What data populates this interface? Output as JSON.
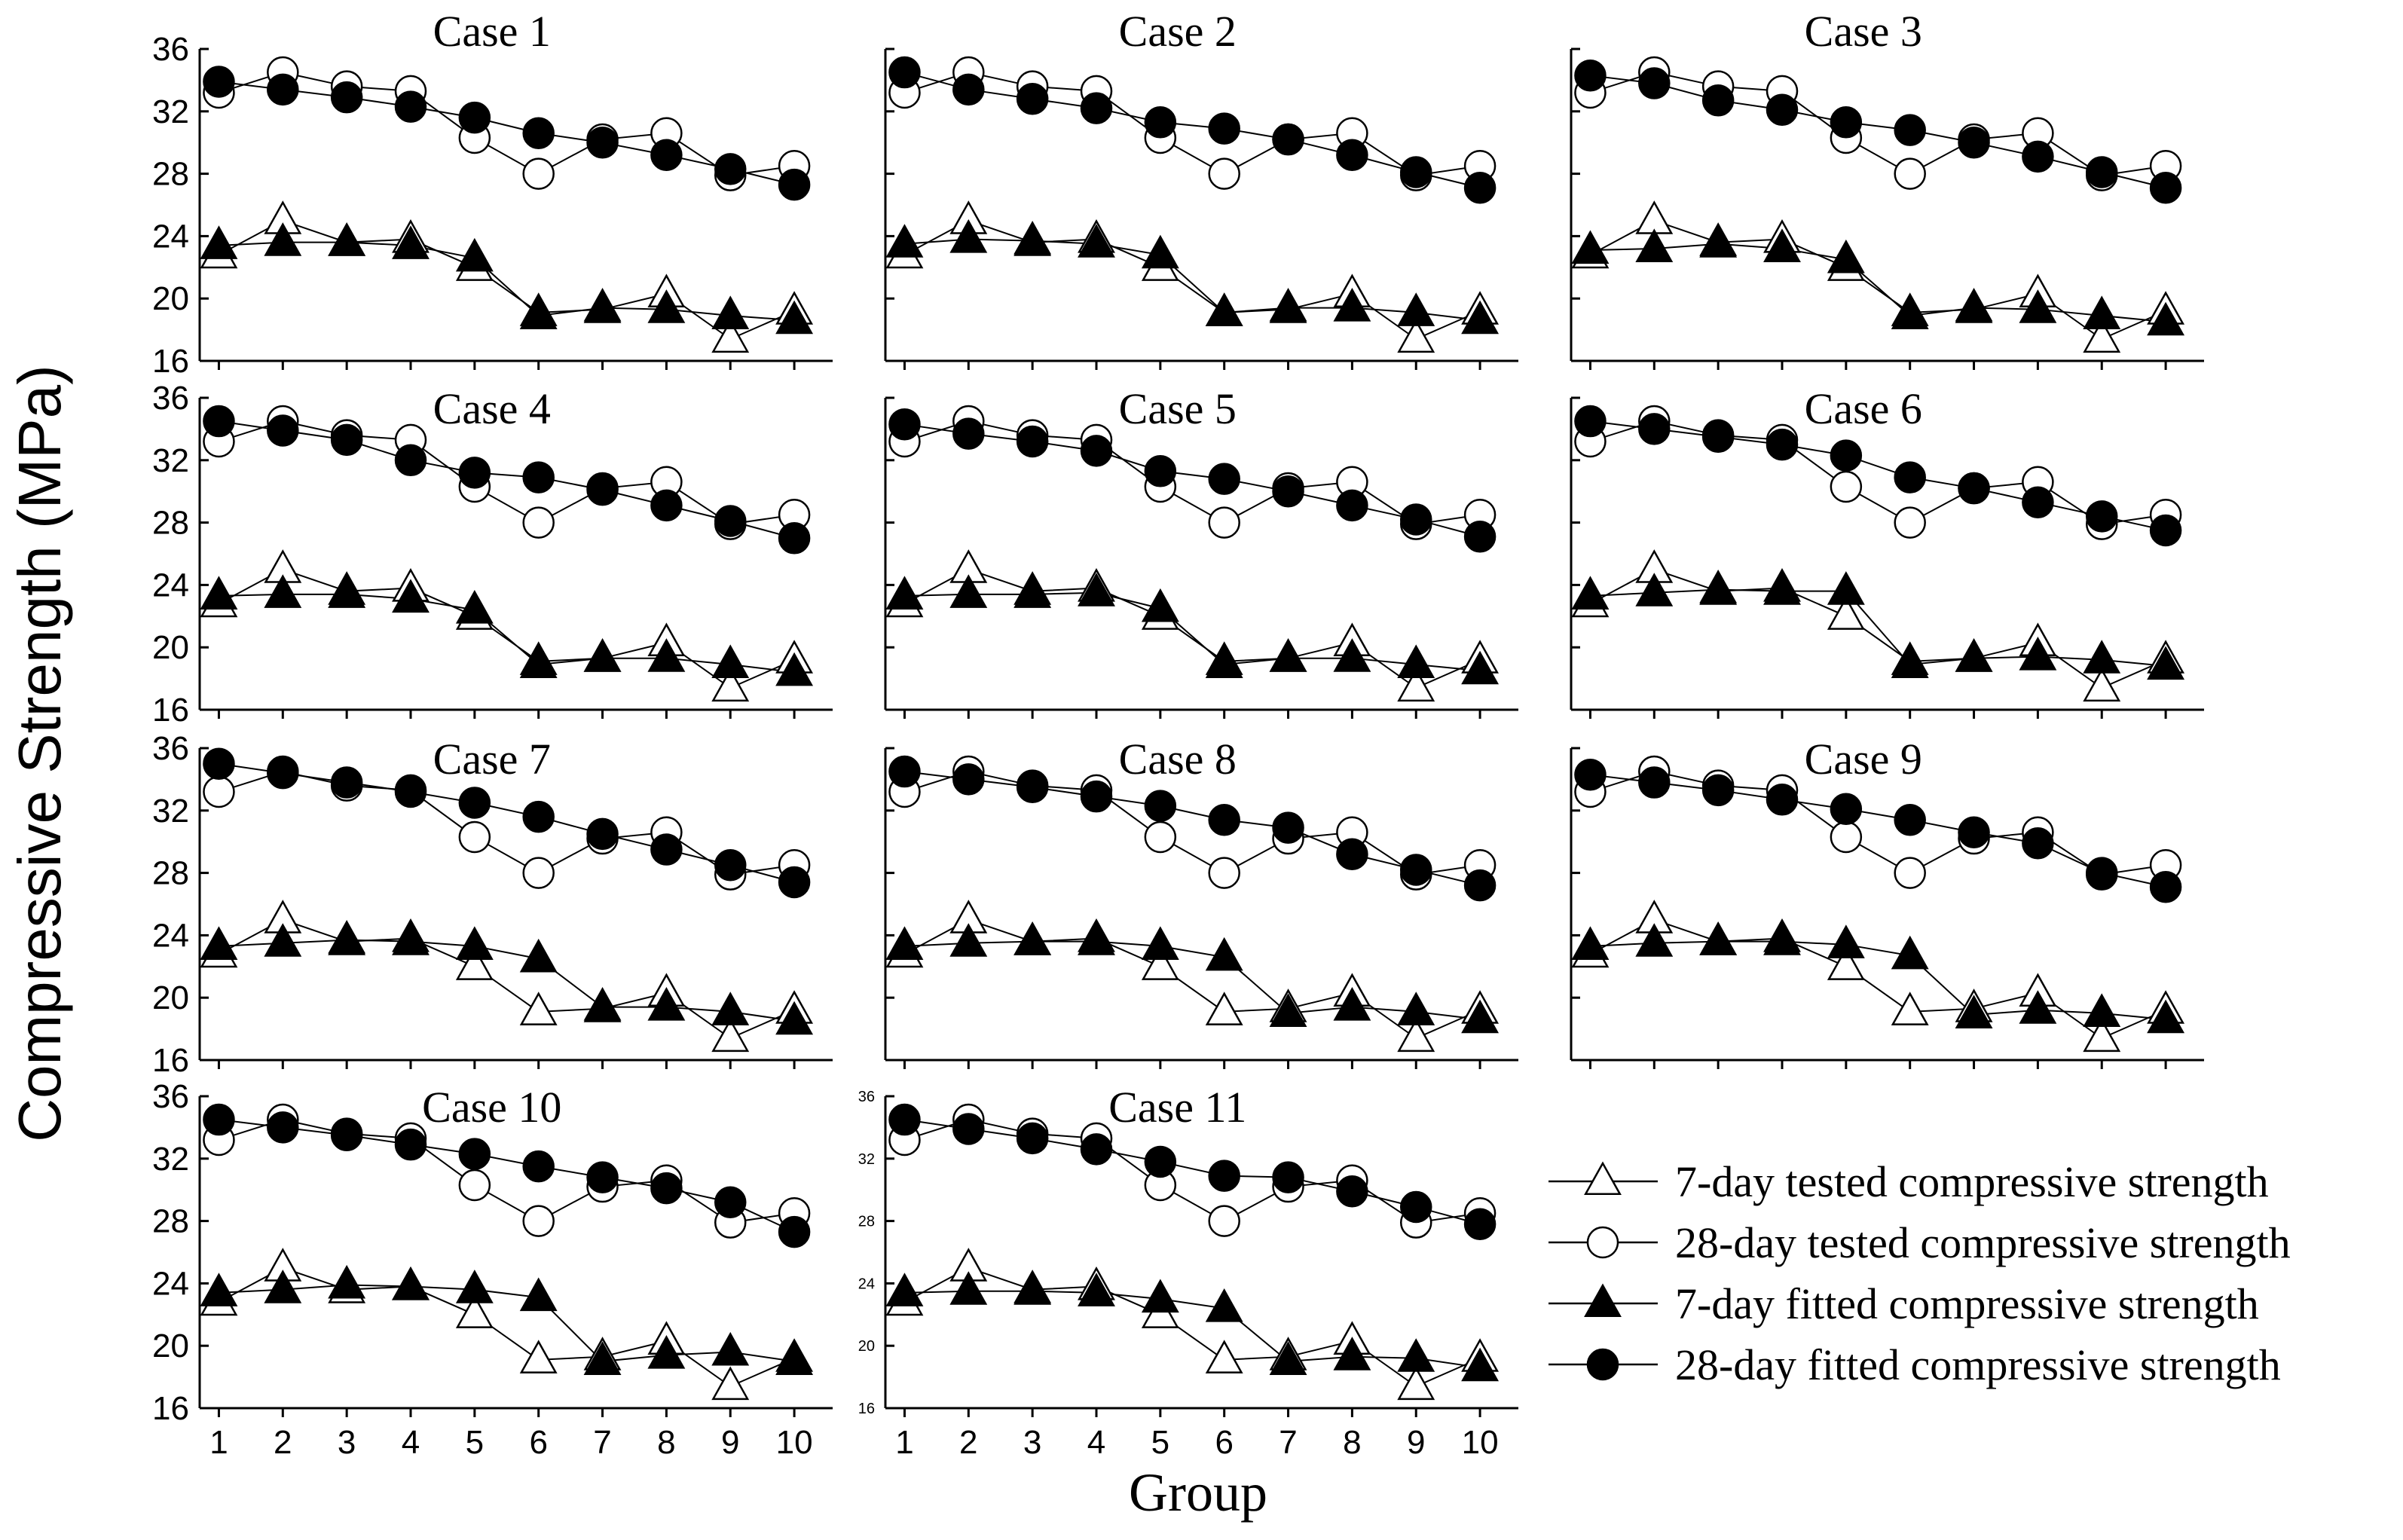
{
  "chart_data": {
    "type": "line",
    "ylabel": "Compressive Strength (MPa)",
    "xlabel": "Group",
    "x": [
      1,
      2,
      3,
      4,
      5,
      6,
      7,
      8,
      9,
      10
    ],
    "x_tick_labels": [
      "1",
      "2",
      "3",
      "4",
      "5",
      "6",
      "7",
      "8",
      "9",
      "10"
    ],
    "yticks": [
      16,
      20,
      24,
      28,
      32,
      36
    ],
    "ylim": [
      16,
      36
    ],
    "xlim": [
      0.7,
      10.6
    ],
    "legend": [
      {
        "key": "t7",
        "label": "7-day tested compressive strength",
        "marker": "triangle-open"
      },
      {
        "key": "t28",
        "label": "28-day tested compressive strength",
        "marker": "circle-open"
      },
      {
        "key": "f7",
        "label": "7-day fitted compressive strength",
        "marker": "triangle-filled"
      },
      {
        "key": "f28",
        "label": "28-day fitted compressive strength",
        "marker": "circle-filled"
      }
    ],
    "tested": {
      "t7": [
        22.8,
        25.0,
        23.6,
        23.8,
        22.0,
        19.1,
        19.3,
        20.3,
        17.4,
        19.2
      ],
      "t28": [
        33.2,
        34.5,
        33.6,
        33.3,
        30.3,
        28.0,
        30.2,
        30.6,
        27.9,
        28.5
      ]
    },
    "panels": [
      {
        "title": "Case 1",
        "f7": [
          23.4,
          23.6,
          23.6,
          23.4,
          22.6,
          18.9,
          19.4,
          19.3,
          18.9,
          18.6
        ],
        "f28": [
          33.9,
          33.4,
          32.9,
          32.3,
          31.6,
          30.6,
          30.0,
          29.2,
          28.3,
          27.3
        ]
      },
      {
        "title": "Case 2",
        "f7": [
          23.5,
          23.8,
          23.7,
          23.5,
          22.8,
          19.1,
          19.4,
          19.4,
          19.1,
          18.6
        ],
        "f28": [
          34.5,
          33.4,
          32.8,
          32.2,
          31.3,
          30.9,
          30.2,
          29.2,
          28.1,
          27.1
        ]
      },
      {
        "title": "Case 3",
        "f7": [
          23.1,
          23.2,
          23.5,
          23.2,
          22.5,
          18.9,
          19.4,
          19.3,
          18.9,
          18.5
        ],
        "f28": [
          34.3,
          33.8,
          32.7,
          32.1,
          31.3,
          30.8,
          30.0,
          29.1,
          28.1,
          27.1
        ]
      },
      {
        "title": "Case 4",
        "f7": [
          23.3,
          23.4,
          23.4,
          23.1,
          22.4,
          18.9,
          19.3,
          19.3,
          18.9,
          18.4
        ],
        "f28": [
          34.5,
          33.9,
          33.3,
          32.0,
          31.2,
          30.9,
          30.1,
          29.1,
          28.1,
          27.0
        ]
      },
      {
        "title": "Case 5",
        "f7": [
          23.3,
          23.4,
          23.4,
          23.5,
          22.5,
          18.9,
          19.3,
          19.3,
          18.9,
          18.5
        ],
        "f28": [
          34.3,
          33.7,
          33.2,
          32.6,
          31.3,
          30.8,
          30.0,
          29.1,
          28.2,
          27.1
        ]
      },
      {
        "title": "Case 6",
        "f7": [
          23.3,
          23.5,
          23.7,
          23.6,
          23.6,
          18.9,
          19.3,
          19.4,
          19.2,
          18.8
        ],
        "f28": [
          34.5,
          34.0,
          33.5,
          33.0,
          32.3,
          30.9,
          30.2,
          29.3,
          28.4,
          27.5
        ]
      },
      {
        "title": "Case 7",
        "f7": [
          23.3,
          23.5,
          23.7,
          23.6,
          23.3,
          22.5,
          19.4,
          19.4,
          19.1,
          18.5
        ],
        "f28": [
          35.0,
          34.4,
          33.8,
          33.2,
          32.5,
          31.6,
          30.5,
          29.5,
          28.5,
          27.4
        ]
      },
      {
        "title": "Case 8",
        "f7": [
          23.3,
          23.5,
          23.6,
          23.6,
          23.3,
          22.6,
          19.0,
          19.4,
          19.1,
          18.6
        ],
        "f28": [
          34.5,
          34.0,
          33.5,
          32.9,
          32.3,
          31.4,
          30.9,
          29.2,
          28.2,
          27.2
        ]
      },
      {
        "title": "Case 9",
        "f7": [
          23.3,
          23.5,
          23.6,
          23.6,
          23.4,
          22.7,
          18.9,
          19.2,
          19.0,
          18.6
        ],
        "f28": [
          34.3,
          33.8,
          33.3,
          32.7,
          32.1,
          31.4,
          30.6,
          29.9,
          28.0,
          27.1
        ]
      },
      {
        "title": "Case 10",
        "f7": [
          23.4,
          23.6,
          23.9,
          23.8,
          23.6,
          23.1,
          19.0,
          19.4,
          19.6,
          19.0
        ],
        "f28": [
          34.5,
          34.0,
          33.5,
          32.9,
          32.3,
          31.5,
          30.8,
          30.1,
          29.2,
          27.3
        ]
      },
      {
        "title": "Case 11",
        "f7": [
          23.4,
          23.5,
          23.5,
          23.4,
          23.0,
          22.4,
          19.0,
          19.3,
          19.2,
          18.6
        ],
        "f28": [
          34.5,
          33.9,
          33.3,
          32.6,
          31.8,
          30.9,
          30.8,
          29.9,
          28.9,
          27.8
        ],
        "small_ticks": true
      }
    ]
  }
}
